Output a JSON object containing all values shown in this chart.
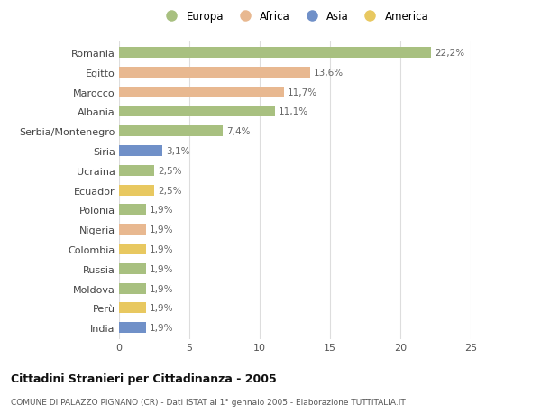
{
  "countries": [
    "Romania",
    "Egitto",
    "Marocco",
    "Albania",
    "Serbia/Montenegro",
    "Siria",
    "Ucraina",
    "Ecuador",
    "Polonia",
    "Nigeria",
    "Colombia",
    "Russia",
    "Moldova",
    "Perù",
    "India"
  ],
  "values": [
    22.2,
    13.6,
    11.7,
    11.1,
    7.4,
    3.1,
    2.5,
    2.5,
    1.9,
    1.9,
    1.9,
    1.9,
    1.9,
    1.9,
    1.9
  ],
  "labels": [
    "22,2%",
    "13,6%",
    "11,7%",
    "11,1%",
    "7,4%",
    "3,1%",
    "2,5%",
    "2,5%",
    "1,9%",
    "1,9%",
    "1,9%",
    "1,9%",
    "1,9%",
    "1,9%",
    "1,9%"
  ],
  "continents": [
    "Europa",
    "Africa",
    "Africa",
    "Europa",
    "Europa",
    "Asia",
    "Europa",
    "America",
    "Europa",
    "Africa",
    "America",
    "Europa",
    "Europa",
    "America",
    "Asia"
  ],
  "colors": {
    "Europa": "#a8c080",
    "Africa": "#e8b890",
    "Asia": "#7090c8",
    "America": "#e8c860"
  },
  "legend_labels": [
    "Europa",
    "Africa",
    "Asia",
    "America"
  ],
  "legend_colors": [
    "#a8c080",
    "#e8b890",
    "#7090c8",
    "#e8c860"
  ],
  "title": "Cittadini Stranieri per Cittadinanza - 2005",
  "subtitle": "COMUNE DI PALAZZO PIGNANO (CR) - Dati ISTAT al 1° gennaio 2005 - Elaborazione TUTTITALIA.IT",
  "xlim": [
    0,
    25
  ],
  "xticks": [
    0,
    5,
    10,
    15,
    20,
    25
  ],
  "background_color": "#ffffff",
  "grid_color": "#dddddd"
}
